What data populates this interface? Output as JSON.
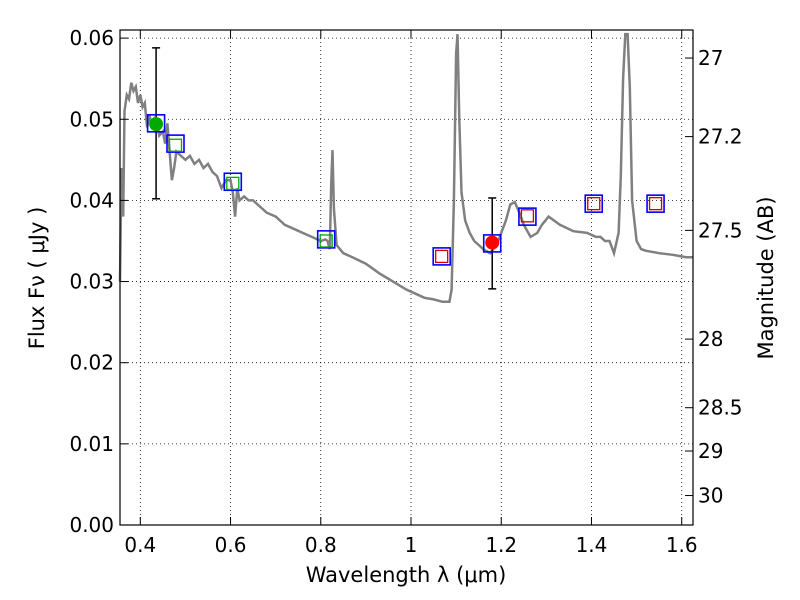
{
  "chart_data": {
    "type": "scatter",
    "xlabel": "Wavelength  λ (μm)",
    "ylabel": "Flux  Fν  ( μJy )",
    "ylabel_right": "Magnitude (AB)",
    "xlim": [
      0.355,
      1.625
    ],
    "ylim": [
      0.0,
      0.061
    ],
    "grid": true,
    "x_ticks": [
      {
        "value": 0.4,
        "label": "0.4"
      },
      {
        "value": 0.6,
        "label": "0.6"
      },
      {
        "value": 0.8,
        "label": "0.8"
      },
      {
        "value": 1.0,
        "label": "1"
      },
      {
        "value": 1.2,
        "label": "1.2"
      },
      {
        "value": 1.4,
        "label": "1.4"
      },
      {
        "value": 1.6,
        "label": "1.6"
      }
    ],
    "y_ticks": [
      {
        "value": 0.0,
        "label": "0.00"
      },
      {
        "value": 0.01,
        "label": "0.01"
      },
      {
        "value": 0.02,
        "label": "0.02"
      },
      {
        "value": 0.03,
        "label": "0.03"
      },
      {
        "value": 0.04,
        "label": "0.04"
      },
      {
        "value": 0.05,
        "label": "0.05"
      },
      {
        "value": 0.06,
        "label": "0.06"
      }
    ],
    "mag_ticks": [
      {
        "value": 27,
        "label": "27"
      },
      {
        "value": 27.2,
        "label": "27.2"
      },
      {
        "value": 27.5,
        "label": "27.5"
      },
      {
        "value": 28,
        "label": "28"
      },
      {
        "value": 28.5,
        "label": "28.5"
      },
      {
        "value": 29,
        "label": "29"
      },
      {
        "value": 30,
        "label": "30"
      }
    ],
    "spectrum": {
      "color": "#808080",
      "points": [
        [
          0.355,
          0.03
        ],
        [
          0.358,
          0.044
        ],
        [
          0.362,
          0.038
        ],
        [
          0.365,
          0.051
        ],
        [
          0.37,
          0.053
        ],
        [
          0.375,
          0.0525
        ],
        [
          0.38,
          0.0545
        ],
        [
          0.385,
          0.0535
        ],
        [
          0.39,
          0.054
        ],
        [
          0.395,
          0.052
        ],
        [
          0.4,
          0.053
        ],
        [
          0.405,
          0.0515
        ],
        [
          0.41,
          0.052
        ],
        [
          0.415,
          0.049
        ],
        [
          0.42,
          0.0505
        ],
        [
          0.425,
          0.0495
        ],
        [
          0.43,
          0.05
        ],
        [
          0.434,
          0.0485
        ],
        [
          0.438,
          0.0495
        ],
        [
          0.442,
          0.048
        ],
        [
          0.45,
          0.0485
        ],
        [
          0.455,
          0.047
        ],
        [
          0.46,
          0.0495
        ],
        [
          0.465,
          0.046
        ],
        [
          0.47,
          0.0425
        ],
        [
          0.475,
          0.044
        ],
        [
          0.48,
          0.046
        ],
        [
          0.49,
          0.0455
        ],
        [
          0.5,
          0.045
        ],
        [
          0.51,
          0.0455
        ],
        [
          0.52,
          0.0445
        ],
        [
          0.53,
          0.045
        ],
        [
          0.54,
          0.044
        ],
        [
          0.55,
          0.0445
        ],
        [
          0.56,
          0.0435
        ],
        [
          0.57,
          0.043
        ],
        [
          0.58,
          0.0415
        ],
        [
          0.59,
          0.0425
        ],
        [
          0.6,
          0.0425
        ],
        [
          0.605,
          0.041
        ],
        [
          0.61,
          0.038
        ],
        [
          0.615,
          0.0415
        ],
        [
          0.62,
          0.04
        ],
        [
          0.63,
          0.0405
        ],
        [
          0.64,
          0.04
        ],
        [
          0.65,
          0.04
        ],
        [
          0.66,
          0.0395
        ],
        [
          0.67,
          0.039
        ],
        [
          0.68,
          0.0385
        ],
        [
          0.7,
          0.038
        ],
        [
          0.72,
          0.037
        ],
        [
          0.74,
          0.0365
        ],
        [
          0.76,
          0.036
        ],
        [
          0.78,
          0.0355
        ],
        [
          0.8,
          0.035
        ],
        [
          0.81,
          0.0352
        ],
        [
          0.815,
          0.035
        ],
        [
          0.82,
          0.034
        ],
        [
          0.823,
          0.042
        ],
        [
          0.826,
          0.0462
        ],
        [
          0.829,
          0.039
        ],
        [
          0.835,
          0.0345
        ],
        [
          0.85,
          0.0335
        ],
        [
          0.87,
          0.033
        ],
        [
          0.9,
          0.0322
        ],
        [
          0.93,
          0.031
        ],
        [
          0.96,
          0.03
        ],
        [
          0.99,
          0.029
        ],
        [
          1.01,
          0.0285
        ],
        [
          1.03,
          0.028
        ],
        [
          1.05,
          0.0278
        ],
        [
          1.07,
          0.0275
        ],
        [
          1.085,
          0.0275
        ],
        [
          1.09,
          0.029
        ],
        [
          1.095,
          0.04
        ],
        [
          1.1,
          0.058
        ],
        [
          1.103,
          0.0605
        ],
        [
          1.107,
          0.05
        ],
        [
          1.112,
          0.041
        ],
        [
          1.12,
          0.0375
        ],
        [
          1.13,
          0.036
        ],
        [
          1.14,
          0.035
        ],
        [
          1.15,
          0.0345
        ],
        [
          1.16,
          0.034
        ],
        [
          1.175,
          0.0335
        ],
        [
          1.19,
          0.0345
        ],
        [
          1.2,
          0.036
        ],
        [
          1.21,
          0.0375
        ],
        [
          1.22,
          0.0395
        ],
        [
          1.23,
          0.0398
        ],
        [
          1.24,
          0.0385
        ],
        [
          1.25,
          0.037
        ],
        [
          1.265,
          0.0355
        ],
        [
          1.28,
          0.036
        ],
        [
          1.29,
          0.037
        ],
        [
          1.305,
          0.038
        ],
        [
          1.33,
          0.037
        ],
        [
          1.36,
          0.0362
        ],
        [
          1.39,
          0.036
        ],
        [
          1.41,
          0.0355
        ],
        [
          1.42,
          0.0355
        ],
        [
          1.43,
          0.035
        ],
        [
          1.44,
          0.035
        ],
        [
          1.45,
          0.0335
        ],
        [
          1.46,
          0.036
        ],
        [
          1.465,
          0.043
        ],
        [
          1.47,
          0.055
        ],
        [
          1.475,
          0.0605
        ],
        [
          1.48,
          0.0605
        ],
        [
          1.485,
          0.054
        ],
        [
          1.49,
          0.04
        ],
        [
          1.5,
          0.035
        ],
        [
          1.51,
          0.034
        ],
        [
          1.52,
          0.0338
        ],
        [
          1.55,
          0.0335
        ],
        [
          1.58,
          0.0333
        ],
        [
          1.61,
          0.033
        ],
        [
          1.625,
          0.033
        ]
      ]
    },
    "model_photometry": {
      "marker": "square",
      "color": "#0000ff",
      "points": [
        [
          0.435,
          0.0495
        ],
        [
          0.478,
          0.047
        ],
        [
          0.605,
          0.0423
        ],
        [
          0.812,
          0.0352
        ],
        [
          1.068,
          0.0331
        ],
        [
          1.18,
          0.0347
        ],
        [
          1.258,
          0.038
        ],
        [
          1.405,
          0.0396
        ],
        [
          1.542,
          0.0396
        ]
      ]
    },
    "detections_squares": {
      "marker": "square",
      "color": "#00aa00",
      "points": [
        [
          0.478,
          0.0468
        ],
        [
          0.605,
          0.0421
        ],
        [
          0.812,
          0.035
        ]
      ]
    },
    "upper_limit_squares": {
      "marker": "square",
      "color": "#cc0000",
      "points": [
        [
          1.068,
          0.0331
        ],
        [
          1.258,
          0.0381
        ],
        [
          1.405,
          0.0396
        ],
        [
          1.542,
          0.0396
        ]
      ]
    },
    "measured_points": [
      {
        "x": 0.435,
        "y": 0.0494,
        "err_low": 0.0402,
        "err_high": 0.0588,
        "color": "#00aa00"
      },
      {
        "x": 1.18,
        "y": 0.0348,
        "err_low": 0.0291,
        "err_high": 0.0403,
        "color": "#ff0000"
      }
    ]
  }
}
